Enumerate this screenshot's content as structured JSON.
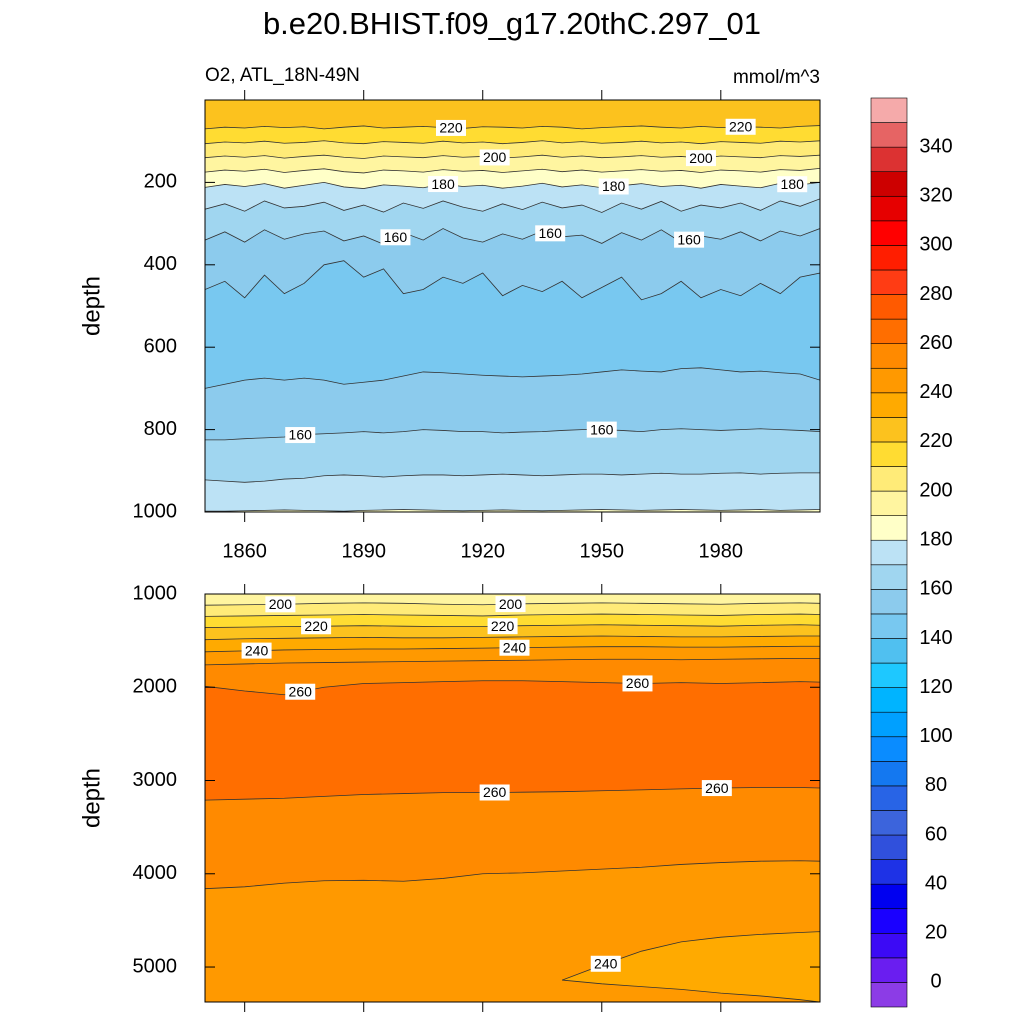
{
  "title": "b.e20.BHIST.f09_g17.20thC.297_01",
  "chart_data": [
    {
      "type": "contour",
      "subtitle_left": "O2, ATL_18N-49N",
      "subtitle_right": "mmol/m^3",
      "ylabel": "depth",
      "xlim": [
        1850,
        2005
      ],
      "xticks": [
        1860,
        1890,
        1920,
        1950,
        1980
      ],
      "ylim": [
        0,
        1000
      ],
      "yreverse": true,
      "yticks": [
        200,
        400,
        600,
        800,
        1000
      ],
      "x": [
        1850,
        1855,
        1860,
        1865,
        1870,
        1875,
        1880,
        1885,
        1890,
        1895,
        1900,
        1905,
        1910,
        1915,
        1920,
        1925,
        1930,
        1935,
        1940,
        1945,
        1950,
        1955,
        1960,
        1965,
        1970,
        1975,
        1980,
        1985,
        1990,
        1995,
        2000,
        2005
      ],
      "contours": [
        {
          "level": 220,
          "depth": [
            70,
            66,
            68,
            64,
            67,
            65,
            70,
            66,
            63,
            68,
            66,
            64,
            67,
            69,
            65,
            66,
            68,
            64,
            66,
            70,
            67,
            65,
            63,
            66,
            68,
            64,
            67,
            65,
            66,
            68,
            64,
            62
          ]
        },
        {
          "level": 210,
          "depth": [
            106,
            102,
            104,
            100,
            105,
            103,
            99,
            104,
            106,
            101,
            103,
            105,
            100,
            104,
            102,
            106,
            103,
            99,
            104,
            101,
            105,
            103,
            100,
            104,
            102,
            106,
            101,
            103,
            105,
            100,
            102,
            99
          ]
        },
        {
          "level": 200,
          "depth": [
            140,
            136,
            139,
            135,
            141,
            137,
            134,
            139,
            142,
            136,
            138,
            140,
            135,
            139,
            137,
            141,
            138,
            134,
            139,
            136,
            140,
            138,
            135,
            139,
            137,
            141,
            136,
            138,
            140,
            135,
            137,
            134
          ]
        },
        {
          "level": 190,
          "depth": [
            175,
            170,
            173,
            168,
            176,
            171,
            167,
            174,
            177,
            170,
            172,
            175,
            169,
            173,
            171,
            176,
            172,
            168,
            174,
            170,
            175,
            172,
            169,
            173,
            171,
            176,
            170,
            172,
            175,
            169,
            171,
            166
          ]
        },
        {
          "level": 180,
          "depth": [
            212,
            205,
            210,
            203,
            214,
            207,
            200,
            211,
            215,
            206,
            209,
            213,
            204,
            210,
            207,
            214,
            209,
            202,
            211,
            206,
            213,
            208,
            203,
            210,
            207,
            214,
            205,
            209,
            213,
            202,
            206,
            200
          ]
        },
        {
          "level": 170,
          "depth": [
            265,
            252,
            270,
            245,
            262,
            258,
            248,
            268,
            255,
            272,
            250,
            263,
            245,
            260,
            270,
            252,
            266,
            248,
            262,
            255,
            273,
            250,
            265,
            246,
            270,
            255,
            262,
            250,
            268,
            245,
            258,
            240
          ]
        },
        {
          "level": 160,
          "depth": [
            340,
            320,
            345,
            315,
            338,
            325,
            318,
            342,
            330,
            350,
            322,
            340,
            312,
            335,
            345,
            325,
            338,
            318,
            332,
            328,
            348,
            322,
            340,
            315,
            345,
            330,
            338,
            320,
            342,
            318,
            330,
            312
          ]
        },
        {
          "level": 150,
          "depth": [
            460,
            440,
            480,
            425,
            470,
            445,
            400,
            390,
            430,
            410,
            470,
            460,
            430,
            445,
            420,
            475,
            450,
            465,
            440,
            480,
            455,
            430,
            485,
            470,
            440,
            480,
            460,
            475,
            445,
            470,
            430,
            420
          ]
        },
        {
          "level": 150,
          "depth": [
            700,
            690,
            680,
            675,
            680,
            675,
            680,
            690,
            685,
            680,
            670,
            660,
            662,
            665,
            668,
            670,
            672,
            670,
            668,
            665,
            660,
            655,
            658,
            660,
            652,
            650,
            655,
            660,
            658,
            662,
            665,
            680
          ]
        },
        {
          "level": 160,
          "depth": [
            825,
            825,
            822,
            820,
            818,
            812,
            810,
            808,
            805,
            808,
            805,
            800,
            802,
            805,
            805,
            808,
            806,
            805,
            802,
            800,
            800,
            802,
            805,
            800,
            798,
            800,
            802,
            800,
            798,
            800,
            802,
            805
          ]
        },
        {
          "level": 170,
          "depth": [
            922,
            925,
            928,
            925,
            920,
            918,
            912,
            910,
            912,
            915,
            912,
            910,
            910,
            912,
            910,
            908,
            910,
            912,
            910,
            908,
            908,
            910,
            908,
            906,
            908,
            908,
            906,
            905,
            908,
            906,
            905,
            905
          ]
        },
        {
          "level": 180,
          "depth": [
            998,
            998,
            997,
            996,
            995,
            996,
            997,
            998,
            996,
            995,
            994,
            995,
            996,
            997,
            996,
            995,
            996,
            997,
            996,
            995,
            994,
            995,
            996,
            995,
            994,
            995,
            996,
            995,
            994,
            996,
            995,
            994
          ]
        }
      ]
    },
    {
      "type": "contour",
      "ylabel": "depth",
      "xlim": [
        1850,
        2005
      ],
      "xticks": [
        1860,
        1890,
        1920,
        1950,
        1980
      ],
      "ylim": [
        1000,
        5375
      ],
      "yreverse": true,
      "yticks": [
        1000,
        2000,
        3000,
        4000,
        5000
      ],
      "x": [
        1850,
        1860,
        1870,
        1880,
        1890,
        1900,
        1910,
        1920,
        1930,
        1940,
        1950,
        1960,
        1970,
        1980,
        1990,
        2000,
        2005
      ],
      "contours": [
        {
          "level": 200,
          "depth": [
            1120,
            1115,
            1110,
            1100,
            1095,
            1100,
            1110,
            1115,
            1105,
            1100,
            1095,
            1100,
            1105,
            1110,
            1100,
            1095,
            1100
          ]
        },
        {
          "level": 210,
          "depth": [
            1240,
            1235,
            1230,
            1225,
            1220,
            1225,
            1230,
            1235,
            1225,
            1220,
            1215,
            1220,
            1225,
            1230,
            1220,
            1215,
            1220
          ]
        },
        {
          "level": 220,
          "depth": [
            1360,
            1355,
            1350,
            1345,
            1340,
            1345,
            1350,
            1350,
            1340,
            1335,
            1330,
            1335,
            1340,
            1345,
            1335,
            1330,
            1335
          ]
        },
        {
          "level": 230,
          "depth": [
            1490,
            1480,
            1475,
            1470,
            1465,
            1470,
            1470,
            1465,
            1460,
            1455,
            1450,
            1455,
            1460,
            1460,
            1455,
            1450,
            1450
          ]
        },
        {
          "level": 240,
          "depth": [
            1620,
            1610,
            1600,
            1595,
            1590,
            1590,
            1585,
            1580,
            1575,
            1570,
            1565,
            1565,
            1570,
            1570,
            1565,
            1560,
            1560
          ]
        },
        {
          "level": 250,
          "depth": [
            1760,
            1750,
            1740,
            1735,
            1730,
            1725,
            1720,
            1715,
            1710,
            1705,
            1700,
            1700,
            1705,
            1700,
            1695,
            1690,
            1690
          ]
        },
        {
          "level": 260,
          "depth": [
            1990,
            2040,
            2080,
            2000,
            1960,
            1950,
            1940,
            1930,
            1930,
            1940,
            1950,
            1960,
            1950,
            1960,
            1950,
            1940,
            1945
          ]
        },
        {
          "level": 260,
          "depth": [
            3210,
            3200,
            3190,
            3170,
            3150,
            3140,
            3130,
            3130,
            3125,
            3120,
            3110,
            3100,
            3090,
            3080,
            3075,
            3075,
            3080
          ]
        },
        {
          "level": 250,
          "depth": [
            4160,
            4140,
            4100,
            4075,
            4070,
            4080,
            4050,
            4000,
            3990,
            3970,
            3950,
            3930,
            3900,
            3880,
            3865,
            3860,
            3865
          ]
        },
        {
          "level": 240,
          "closed": true,
          "x": [
            1940,
            1950,
            1960,
            1970,
            1980,
            1990,
            2000,
            2005,
            2005,
            2000,
            1990,
            1980,
            1970,
            1960,
            1950
          ],
          "depth": [
            5140,
            4980,
            4830,
            4730,
            4680,
            4650,
            4630,
            4620,
            5375,
            5350,
            5310,
            5280,
            5240,
            5210,
            5180
          ]
        }
      ]
    },
    {
      "type": "colorbar",
      "levels": [
        0,
        10,
        20,
        30,
        40,
        50,
        60,
        70,
        80,
        90,
        100,
        110,
        120,
        130,
        140,
        150,
        160,
        170,
        180,
        190,
        200,
        210,
        220,
        230,
        240,
        250,
        260,
        270,
        280,
        290,
        300,
        310,
        320,
        330,
        340,
        350
      ],
      "colors": [
        "#8c3ce6",
        "#6a1ef0",
        "#3c0af5",
        "#1a00ff",
        "#0000f0",
        "#1e32e6",
        "#3050dc",
        "#3c64dc",
        "#2864e6",
        "#1478f0",
        "#0a8cff",
        "#00a0ff",
        "#00b4ff",
        "#1ec8ff",
        "#50c0f0",
        "#78c8f0",
        "#8ccbed",
        "#a0d6f0",
        "#bce2f5",
        "#ffffc8",
        "#fff5a0",
        "#ffeb78",
        "#ffdc32",
        "#fcc21e",
        "#ffaa00",
        "#ff9900",
        "#ff8a00",
        "#ff6e00",
        "#ff5a00",
        "#ff3c14",
        "#ff1e00",
        "#ff0000",
        "#e60000",
        "#cd0000",
        "#dc3232",
        "#e66464",
        "#f5aaaa"
      ],
      "ticks": [
        0,
        20,
        40,
        60,
        80,
        100,
        120,
        140,
        160,
        180,
        200,
        220,
        240,
        260,
        280,
        300,
        320,
        340
      ]
    }
  ]
}
